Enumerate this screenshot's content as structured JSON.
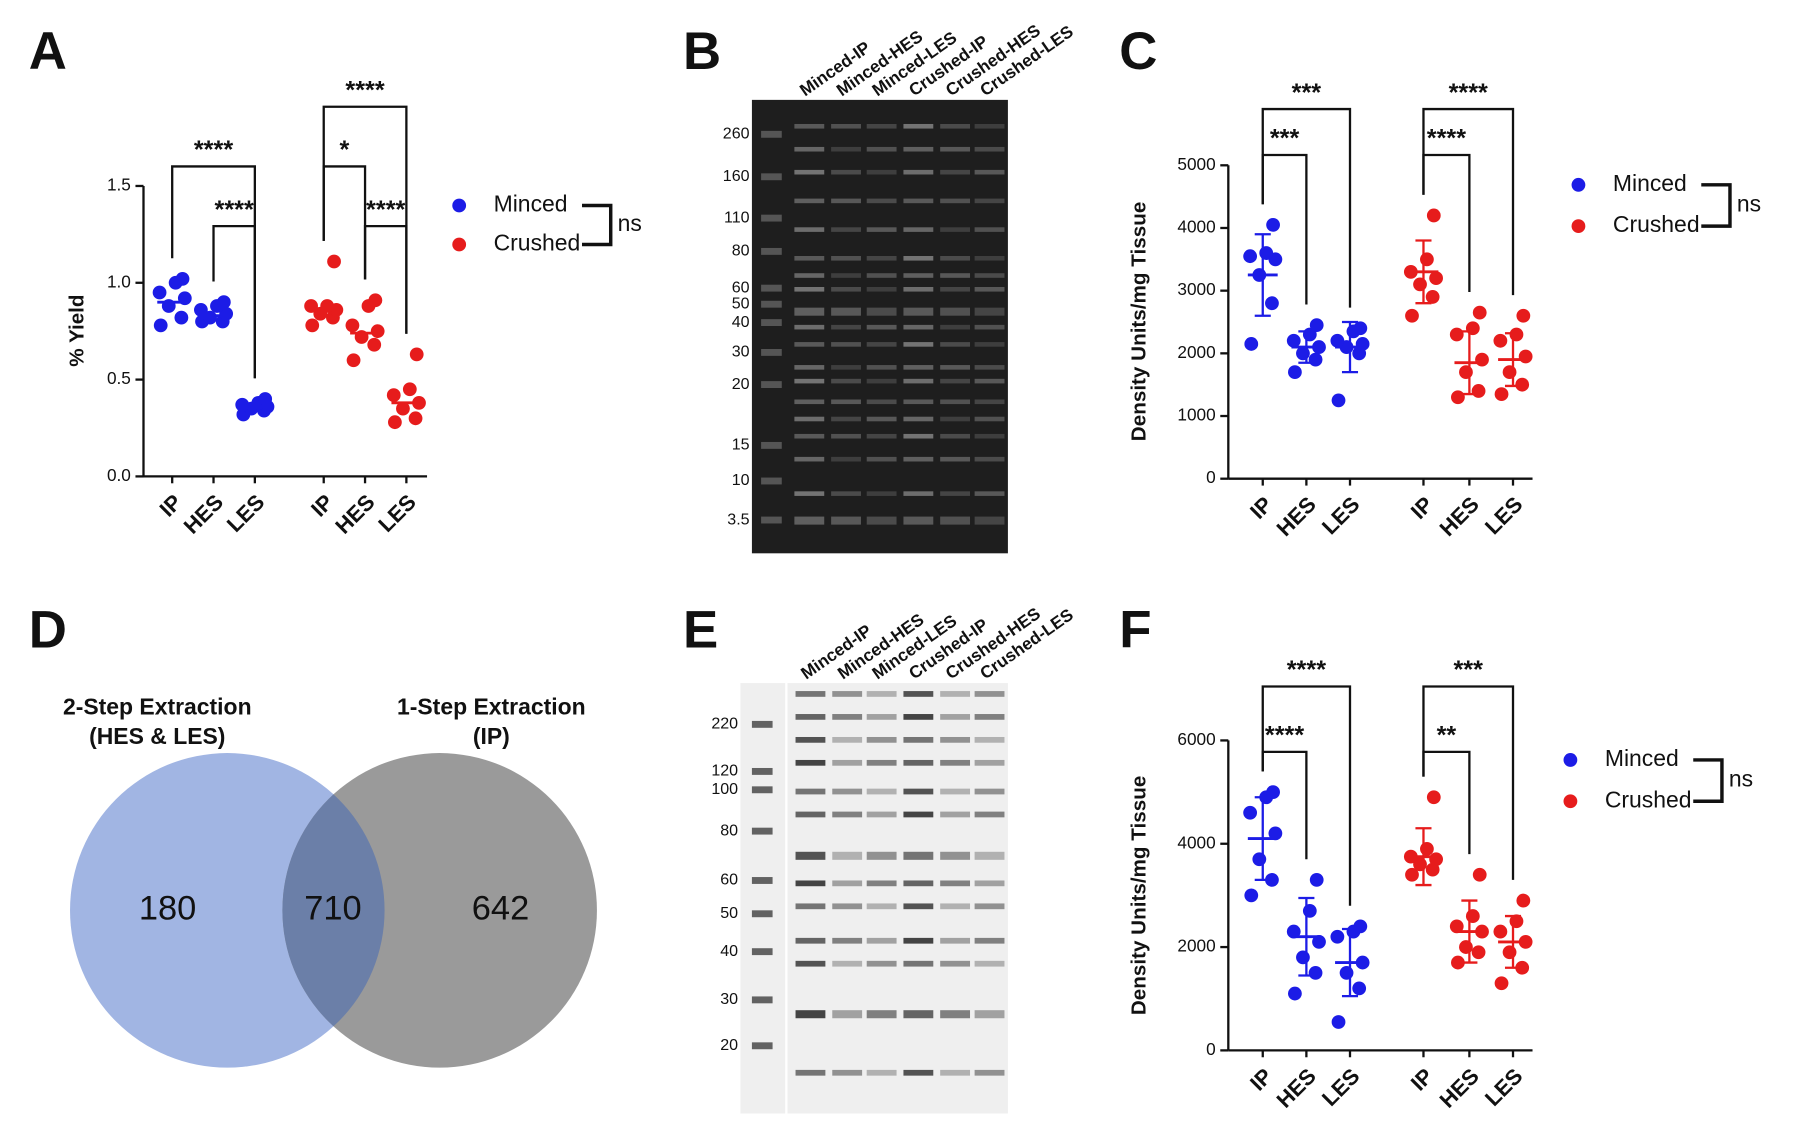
{
  "panels": [
    "A",
    "B",
    "C",
    "D",
    "E",
    "F"
  ],
  "chart_data": [
    {
      "type": "dotplot",
      "ylabel": "% Yield",
      "categories": [
        "IP",
        "HES",
        "LES",
        "IP",
        "HES",
        "LES"
      ],
      "series": [
        {
          "name": "Minced",
          "color": "#1c1ce6",
          "values": [
            [
              0.78,
              0.82,
              0.88,
              0.92,
              0.95,
              1.0,
              1.02
            ],
            [
              0.8,
              0.8,
              0.82,
              0.84,
              0.86,
              0.88,
              0.9
            ],
            [
              0.32,
              0.34,
              0.35,
              0.36,
              0.37,
              0.38,
              0.4
            ],
            null,
            null,
            null
          ],
          "means": [
            0.9,
            0.83,
            0.36,
            null,
            null,
            null
          ]
        },
        {
          "name": "Crushed",
          "color": "#e61c1c",
          "values": [
            null,
            null,
            null,
            [
              0.78,
              0.82,
              0.84,
              0.86,
              0.88,
              0.88,
              1.11
            ],
            [
              0.6,
              0.68,
              0.72,
              0.75,
              0.78,
              0.88,
              0.91
            ],
            [
              0.28,
              0.3,
              0.35,
              0.38,
              0.42,
              0.45,
              0.63
            ]
          ],
          "means": [
            null,
            null,
            null,
            0.86,
            0.74,
            0.38
          ]
        }
      ],
      "ylim": [
        0,
        1.5
      ],
      "yticks": [
        {
          "value": 0,
          "label": "0.0"
        },
        {
          "value": 0.5,
          "label": "0.5"
        },
        {
          "value": 1,
          "label": "1.0"
        },
        {
          "value": 1.5,
          "label": "1.5"
        }
      ],
      "legend_note": "ns",
      "brackets": [
        {
          "from": 1,
          "to": 2,
          "label": "****"
        },
        {
          "from": 0,
          "to": 2,
          "label": "****"
        },
        {
          "from": 4,
          "to": 5,
          "label": "****"
        },
        {
          "from": 3,
          "to": 4,
          "label": "*"
        },
        {
          "from": 3,
          "to": 5,
          "label": "****"
        }
      ]
    },
    {
      "type": "dotplot",
      "ylabel": "Density Units/mg Tissue",
      "categories": [
        "IP",
        "HES",
        "LES",
        "IP",
        "HES",
        "LES"
      ],
      "series": [
        {
          "name": "Minced",
          "color": "#1c1ce6",
          "values": [
            [
              2150,
              2800,
              3250,
              3500,
              3550,
              3600,
              4050
            ],
            [
              1700,
              1900,
              2000,
              2100,
              2200,
              2300,
              2450
            ],
            [
              1250,
              2000,
              2100,
              2150,
              2200,
              2350,
              2400
            ],
            null,
            null,
            null
          ],
          "means": [
            3250,
            2100,
            2100,
            null,
            null,
            null
          ],
          "sd": [
            650,
            250,
            400,
            null,
            null,
            null
          ]
        },
        {
          "name": "Crushed",
          "color": "#e61c1c",
          "values": [
            null,
            null,
            null,
            [
              2600,
              2900,
              3100,
              3200,
              3300,
              3500,
              4200
            ],
            [
              1300,
              1400,
              1700,
              1900,
              2300,
              2400,
              2650
            ],
            [
              1350,
              1500,
              1700,
              1950,
              2200,
              2300,
              2600
            ]
          ],
          "means": [
            null,
            null,
            null,
            3300,
            1850,
            1900
          ],
          "sd": [
            null,
            null,
            null,
            500,
            500,
            420
          ]
        }
      ],
      "ylim": [
        0,
        5000
      ],
      "yticks": [
        0,
        1000,
        2000,
        3000,
        4000,
        5000
      ],
      "legend_note": "ns",
      "brackets": [
        {
          "from": 0,
          "to": 1,
          "label": "***"
        },
        {
          "from": 0,
          "to": 2,
          "label": "***"
        },
        {
          "from": 3,
          "to": 4,
          "label": "****"
        },
        {
          "from": 3,
          "to": 5,
          "label": "****"
        }
      ]
    },
    {
      "type": "dotplot",
      "ylabel": "Density Units/mg Tissue",
      "categories": [
        "IP",
        "HES",
        "LES",
        "IP",
        "HES",
        "LES"
      ],
      "series": [
        {
          "name": "Minced",
          "color": "#1c1ce6",
          "values": [
            [
              3000,
              3300,
              3700,
              4200,
              4600,
              4900,
              5000
            ],
            [
              1100,
              1500,
              1800,
              2100,
              2300,
              2700,
              3300
            ],
            [
              550,
              1200,
              1500,
              1700,
              2200,
              2300,
              2400
            ],
            null,
            null,
            null
          ],
          "means": [
            4100,
            2200,
            1700,
            null,
            null,
            null
          ],
          "sd": [
            800,
            750,
            650,
            null,
            null,
            null
          ]
        },
        {
          "name": "Crushed",
          "color": "#e61c1c",
          "values": [
            null,
            null,
            null,
            [
              3400,
              3500,
              3600,
              3700,
              3750,
              3900,
              4900
            ],
            [
              1700,
              1900,
              2000,
              2300,
              2400,
              2600,
              3400
            ],
            [
              1300,
              1600,
              1900,
              2100,
              2300,
              2500,
              2900
            ]
          ],
          "means": [
            null,
            null,
            null,
            3750,
            2300,
            2100
          ],
          "sd": [
            null,
            null,
            null,
            550,
            600,
            500
          ]
        }
      ],
      "ylim": [
        0,
        6000
      ],
      "yticks": [
        0,
        2000,
        4000,
        6000
      ],
      "legend_note": "ns",
      "brackets": [
        {
          "from": 0,
          "to": 1,
          "label": "****"
        },
        {
          "from": 0,
          "to": 2,
          "label": "****"
        },
        {
          "from": 3,
          "to": 4,
          "label": "**"
        },
        {
          "from": 3,
          "to": 5,
          "label": "***"
        }
      ]
    }
  ],
  "gel_b": {
    "lanes": [
      "Minced-IP",
      "Minced-HES",
      "Minced-LES",
      "Crushed-IP",
      "Crushed-HES",
      "Crushed-LES"
    ],
    "markers": [
      260,
      160,
      110,
      80,
      60,
      50,
      40,
      30,
      20,
      15,
      10,
      3.5
    ]
  },
  "gel_e": {
    "lanes": [
      "Minced-IP",
      "Minced-HES",
      "Minced-LES",
      "Crushed-IP",
      "Crushed-HES",
      "Crushed-LES"
    ],
    "markers": [
      220,
      120,
      100,
      80,
      60,
      50,
      40,
      30,
      20
    ]
  },
  "venn": {
    "left_label": [
      "2-Step Extraction",
      "(HES & LES)"
    ],
    "right_label": [
      "1-Step Extraction",
      "(IP)"
    ],
    "left_only": 180,
    "overlap": 710,
    "right_only": 642
  }
}
